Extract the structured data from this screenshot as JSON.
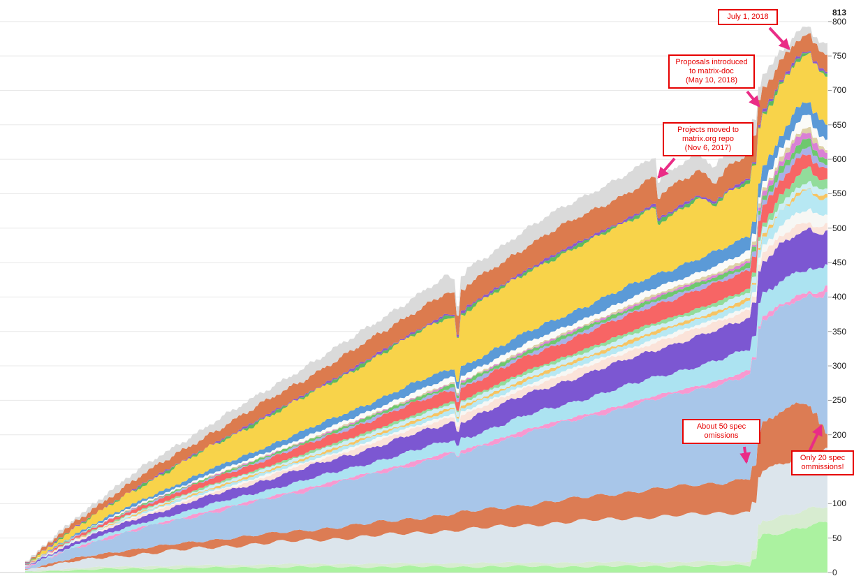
{
  "chart_data": {
    "type": "area",
    "stacked": true,
    "title": "",
    "x_axis": {
      "labels_visible": false,
      "range": [
        0,
        1
      ]
    },
    "y_axis": {
      "side": "right",
      "min": 0,
      "max": 813,
      "tick_step": 50,
      "peak_value": 813,
      "labels": [
        "813",
        "800",
        "750",
        "700",
        "650",
        "600",
        "550",
        "500",
        "450",
        "400",
        "350",
        "300",
        "250",
        "200",
        "150",
        "100",
        "50",
        "0"
      ]
    },
    "grid": "horizontal",
    "legend": "none",
    "series": [
      {
        "name": "light-green",
        "color": "#abf2a0",
        "points": [
          [
            0,
            1
          ],
          [
            0.1,
            5
          ],
          [
            0.32,
            8
          ],
          [
            0.75,
            9
          ],
          [
            0.905,
            10
          ],
          [
            0.916,
            54
          ],
          [
            0.95,
            60
          ],
          [
            0.978,
            68
          ],
          [
            1,
            72
          ]
        ]
      },
      {
        "name": "pale-sage",
        "color": "#d7ecd0",
        "points": [
          [
            0,
            1
          ],
          [
            0.1,
            3
          ],
          [
            0.32,
            4
          ],
          [
            0.75,
            6
          ],
          [
            0.905,
            6
          ],
          [
            0.916,
            22
          ],
          [
            1,
            24
          ]
        ]
      },
      {
        "name": "pale-blue-gray",
        "color": "#dce5ec",
        "points": [
          [
            0,
            2
          ],
          [
            0.057,
            10
          ],
          [
            0.143,
            18
          ],
          [
            0.23,
            26
          ],
          [
            0.404,
            38
          ],
          [
            0.535,
            48
          ],
          [
            0.665,
            58
          ],
          [
            0.783,
            66
          ],
          [
            0.905,
            72
          ],
          [
            0.916,
            72
          ],
          [
            1,
            84
          ]
        ]
      },
      {
        "name": "salmon-spec-omissions",
        "color": "#dc7c54",
        "points": [
          [
            0,
            0
          ],
          [
            0.057,
            4
          ],
          [
            0.143,
            8
          ],
          [
            0.274,
            12
          ],
          [
            0.404,
            17
          ],
          [
            0.535,
            24
          ],
          [
            0.665,
            32
          ],
          [
            0.783,
            40
          ],
          [
            0.863,
            44
          ],
          [
            0.905,
            50
          ],
          [
            0.92,
            66
          ],
          [
            0.94,
            76
          ],
          [
            0.968,
            80
          ],
          [
            0.98,
            68
          ],
          [
            0.991,
            38
          ],
          [
            1,
            20
          ]
        ]
      },
      {
        "name": "steel-blue",
        "color": "#a8c6e9",
        "points": [
          [
            0,
            2
          ],
          [
            0.057,
            14
          ],
          [
            0.143,
            28
          ],
          [
            0.274,
            46
          ],
          [
            0.404,
            66
          ],
          [
            0.533,
            86
          ],
          [
            0.538,
            78
          ],
          [
            0.545,
            86
          ],
          [
            0.622,
            104
          ],
          [
            0.752,
            124
          ],
          [
            0.905,
            150
          ],
          [
            0.93,
            150
          ],
          [
            0.97,
            152
          ],
          [
            0.985,
            170
          ],
          [
            1,
            212
          ]
        ]
      },
      {
        "name": "pink-line",
        "color": "#f899d0",
        "points": [
          [
            0,
            0.5
          ],
          [
            0.23,
            3
          ],
          [
            0.49,
            4
          ],
          [
            0.75,
            5
          ],
          [
            0.905,
            6
          ],
          [
            1,
            6
          ]
        ]
      },
      {
        "name": "light-cyan-a",
        "color": "#ace3f1",
        "points": [
          [
            0,
            1
          ],
          [
            0.143,
            6
          ],
          [
            0.317,
            11
          ],
          [
            0.49,
            16
          ],
          [
            0.533,
            17
          ],
          [
            0.538,
            13
          ],
          [
            0.545,
            17
          ],
          [
            0.665,
            22
          ],
          [
            0.783,
            27
          ],
          [
            0.905,
            31
          ],
          [
            0.952,
            36
          ],
          [
            1,
            31
          ]
        ]
      },
      {
        "name": "purple",
        "color": "#7c57d2",
        "points": [
          [
            0,
            1
          ],
          [
            0.143,
            9
          ],
          [
            0.317,
            16
          ],
          [
            0.49,
            24
          ],
          [
            0.533,
            26
          ],
          [
            0.538,
            21
          ],
          [
            0.545,
            26
          ],
          [
            0.665,
            33
          ],
          [
            0.783,
            40
          ],
          [
            0.905,
            46
          ],
          [
            0.943,
            53
          ],
          [
            0.974,
            56
          ],
          [
            1,
            49
          ]
        ]
      },
      {
        "name": "peach",
        "color": "#fbe3d9",
        "points": [
          [
            0,
            0
          ],
          [
            0.143,
            3
          ],
          [
            0.317,
            5
          ],
          [
            0.49,
            8
          ],
          [
            0.665,
            10
          ],
          [
            0.783,
            11
          ],
          [
            0.905,
            12
          ],
          [
            0.974,
            11
          ],
          [
            1,
            9
          ]
        ]
      },
      {
        "name": "white-band",
        "color": "#f7f7f4",
        "points": [
          [
            0,
            0
          ],
          [
            0.23,
            2
          ],
          [
            0.49,
            4
          ],
          [
            0.75,
            5
          ],
          [
            0.905,
            5
          ],
          [
            0.943,
            14
          ],
          [
            0.974,
            20
          ],
          [
            1,
            15
          ]
        ]
      },
      {
        "name": "light-cyan-b",
        "color": "#b7e8f3",
        "points": [
          [
            0,
            0
          ],
          [
            0.23,
            3
          ],
          [
            0.49,
            5
          ],
          [
            0.75,
            7
          ],
          [
            0.905,
            8
          ],
          [
            0.943,
            20
          ],
          [
            0.974,
            29
          ],
          [
            1,
            25
          ]
        ]
      },
      {
        "name": "gold-line",
        "color": "#f6c464",
        "points": [
          [
            0,
            0
          ],
          [
            0.23,
            2
          ],
          [
            0.49,
            3
          ],
          [
            0.75,
            4
          ],
          [
            0.905,
            4
          ],
          [
            1,
            3
          ]
        ]
      },
      {
        "name": "pale-cyan-c",
        "color": "#cdeef6",
        "points": [
          [
            0,
            0
          ],
          [
            0.23,
            3
          ],
          [
            0.49,
            5
          ],
          [
            0.75,
            7
          ],
          [
            0.905,
            8
          ],
          [
            0.943,
            9
          ],
          [
            1,
            9
          ]
        ]
      },
      {
        "name": "medium-green",
        "color": "#92dc9b",
        "points": [
          [
            0,
            0
          ],
          [
            0.23,
            2
          ],
          [
            0.49,
            3
          ],
          [
            0.75,
            5
          ],
          [
            0.905,
            5
          ],
          [
            0.943,
            13
          ],
          [
            0.974,
            20
          ],
          [
            1,
            12
          ]
        ]
      },
      {
        "name": "red",
        "color": "#f76565",
        "points": [
          [
            0,
            0.5
          ],
          [
            0.143,
            5
          ],
          [
            0.317,
            11
          ],
          [
            0.49,
            17
          ],
          [
            0.533,
            18
          ],
          [
            0.538,
            14
          ],
          [
            0.545,
            18
          ],
          [
            0.665,
            22
          ],
          [
            0.783,
            26
          ],
          [
            0.905,
            27
          ],
          [
            0.943,
            23
          ],
          [
            0.974,
            21
          ],
          [
            1,
            13
          ]
        ]
      },
      {
        "name": "lavender",
        "color": "#aab0e8",
        "points": [
          [
            0,
            0
          ],
          [
            0.317,
            2
          ],
          [
            0.665,
            4
          ],
          [
            0.905,
            5
          ],
          [
            0.943,
            8
          ],
          [
            0.974,
            10
          ],
          [
            1,
            8
          ]
        ]
      },
      {
        "name": "green-thin",
        "color": "#6ec86e",
        "points": [
          [
            0,
            0
          ],
          [
            0.23,
            2
          ],
          [
            0.49,
            4
          ],
          [
            0.75,
            5
          ],
          [
            0.905,
            6
          ],
          [
            0.943,
            9
          ],
          [
            0.974,
            12
          ],
          [
            1,
            8
          ]
        ]
      },
      {
        "name": "orchid",
        "color": "#d981d5",
        "points": [
          [
            0,
            0
          ],
          [
            0.49,
            1
          ],
          [
            0.75,
            2
          ],
          [
            0.905,
            3
          ],
          [
            0.935,
            7
          ],
          [
            0.957,
            12
          ],
          [
            0.983,
            11
          ],
          [
            1,
            8
          ]
        ]
      },
      {
        "name": "tan",
        "color": "#ddd0a6",
        "points": [
          [
            0,
            0
          ],
          [
            0.317,
            1
          ],
          [
            0.665,
            2
          ],
          [
            0.905,
            4
          ],
          [
            0.943,
            6
          ],
          [
            0.974,
            7
          ],
          [
            1,
            5
          ]
        ]
      },
      {
        "name": "off-white",
        "color": "#fbfbf8",
        "points": [
          [
            0,
            0
          ],
          [
            0.23,
            3
          ],
          [
            0.49,
            7
          ],
          [
            0.75,
            9
          ],
          [
            0.905,
            10
          ],
          [
            0.943,
            13
          ],
          [
            0.974,
            18
          ],
          [
            1,
            13
          ]
        ]
      },
      {
        "name": "blue",
        "color": "#5b9ad7",
        "points": [
          [
            0,
            0.5
          ],
          [
            0.143,
            4
          ],
          [
            0.317,
            9
          ],
          [
            0.49,
            13
          ],
          [
            0.533,
            13
          ],
          [
            0.538,
            10
          ],
          [
            0.545,
            13
          ],
          [
            0.665,
            17
          ],
          [
            0.783,
            19
          ],
          [
            0.905,
            21
          ],
          [
            1,
            20
          ]
        ]
      },
      {
        "name": "yellow",
        "color": "#f8d34a",
        "points": [
          [
            0,
            1
          ],
          [
            0.057,
            8
          ],
          [
            0.143,
            20
          ],
          [
            0.274,
            38
          ],
          [
            0.404,
            56
          ],
          [
            0.53,
            78
          ],
          [
            0.538,
            60
          ],
          [
            0.548,
            78
          ],
          [
            0.665,
            90
          ],
          [
            0.752,
            94
          ],
          [
            0.783,
            98
          ],
          [
            0.79,
            72
          ],
          [
            0.797,
            76
          ],
          [
            0.839,
            86
          ],
          [
            0.861,
            66
          ],
          [
            0.87,
            76
          ],
          [
            0.905,
            80
          ],
          [
            0.943,
            72
          ],
          [
            0.974,
            66
          ],
          [
            1,
            74
          ]
        ]
      },
      {
        "name": "green-line",
        "color": "#5eba5e",
        "points": [
          [
            0,
            0.5
          ],
          [
            0.317,
            2
          ],
          [
            0.665,
            3
          ],
          [
            1,
            3
          ]
        ]
      },
      {
        "name": "purple-line",
        "color": "#8a5acc",
        "points": [
          [
            0,
            0.5
          ],
          [
            0.317,
            2
          ],
          [
            0.665,
            3
          ],
          [
            1,
            3
          ]
        ]
      },
      {
        "name": "orange",
        "color": "#dc7b4e",
        "points": [
          [
            0,
            1
          ],
          [
            0.057,
            7
          ],
          [
            0.143,
            13
          ],
          [
            0.274,
            19
          ],
          [
            0.404,
            25
          ],
          [
            0.53,
            31
          ],
          [
            0.538,
            24
          ],
          [
            0.548,
            31
          ],
          [
            0.665,
            35
          ],
          [
            0.783,
            38
          ],
          [
            0.79,
            29
          ],
          [
            0.797,
            34
          ],
          [
            0.839,
            36
          ],
          [
            0.861,
            29
          ],
          [
            0.87,
            33
          ],
          [
            0.905,
            36
          ],
          [
            0.926,
            30
          ],
          [
            0.952,
            26
          ],
          [
            0.974,
            24
          ],
          [
            1,
            28
          ]
        ]
      },
      {
        "name": "light-gray",
        "color": "#dadada",
        "points": [
          [
            0,
            1
          ],
          [
            0.057,
            5
          ],
          [
            0.143,
            11
          ],
          [
            0.274,
            15
          ],
          [
            0.404,
            19
          ],
          [
            0.53,
            23
          ],
          [
            0.538,
            17
          ],
          [
            0.548,
            23
          ],
          [
            0.665,
            26
          ],
          [
            0.783,
            29
          ],
          [
            0.79,
            21
          ],
          [
            0.797,
            25
          ],
          [
            0.839,
            26
          ],
          [
            0.861,
            21
          ],
          [
            0.87,
            24
          ],
          [
            0.905,
            25
          ],
          [
            0.943,
            15
          ],
          [
            0.974,
            11
          ],
          [
            1,
            13
          ]
        ]
      }
    ],
    "annotations": [
      {
        "id": "july1",
        "lines": [
          "July 1, 2018"
        ]
      },
      {
        "id": "proposals",
        "lines": [
          "Proposals introduced",
          "to matrix-doc",
          "(May 10, 2018)"
        ]
      },
      {
        "id": "projects",
        "lines": [
          "Projects moved to",
          "matrix.org repo",
          "(Nov 6, 2017)"
        ]
      },
      {
        "id": "about50",
        "lines": [
          "About 50 spec",
          "omissions"
        ]
      },
      {
        "id": "only20",
        "lines": [
          "Only 20 spec",
          "ommissions!"
        ]
      }
    ],
    "colors": {
      "annotation_red": "#e60000",
      "arrow_pink": "#ea2c86",
      "gridline": "#e8e8e8",
      "baseline": "#cccccc",
      "axis_text": "#1a1a1a"
    }
  }
}
